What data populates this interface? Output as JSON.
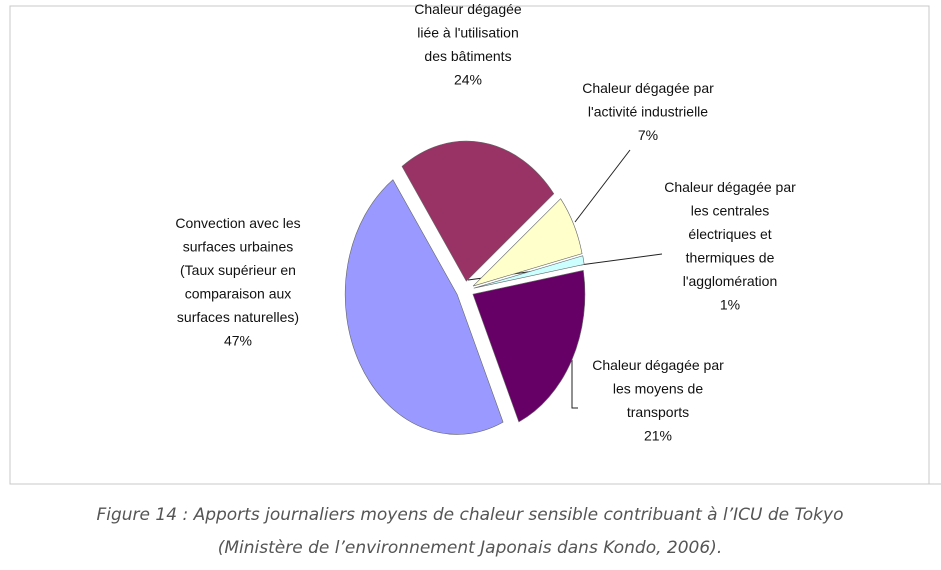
{
  "chart_data": {
    "type": "pie",
    "categories": [
      "Chaleur dégagée\nliée à l'utilisation\ndes bâtiments",
      "Chaleur dégagée par\nl'activité industrielle",
      "Chaleur dégagée par\nles centrales\nélectriques et\nthermiques de\nl'agglomération",
      "Chaleur dégagée par\nles moyens de\ntransports",
      "Convection avec les\nsurfaces urbaines\n(Taux supérieur en\ncomparaison aux\nsurfaces naturelles)"
    ],
    "values": [
      24,
      7,
      1,
      21,
      47
    ],
    "value_labels": [
      "24%",
      "7%",
      "1%",
      "21%",
      "47%"
    ],
    "colors": [
      "#993366",
      "#ffffcc",
      "#ccffff",
      "#660066",
      "#9999ff"
    ],
    "caption": [
      "Figure 14 : Apports journaliers moyens de chaleur sensible contribuant à l’ICU de Tokyo",
      "(Ministère de l’environnement Japonais dans Kondo, 2006)."
    ]
  }
}
